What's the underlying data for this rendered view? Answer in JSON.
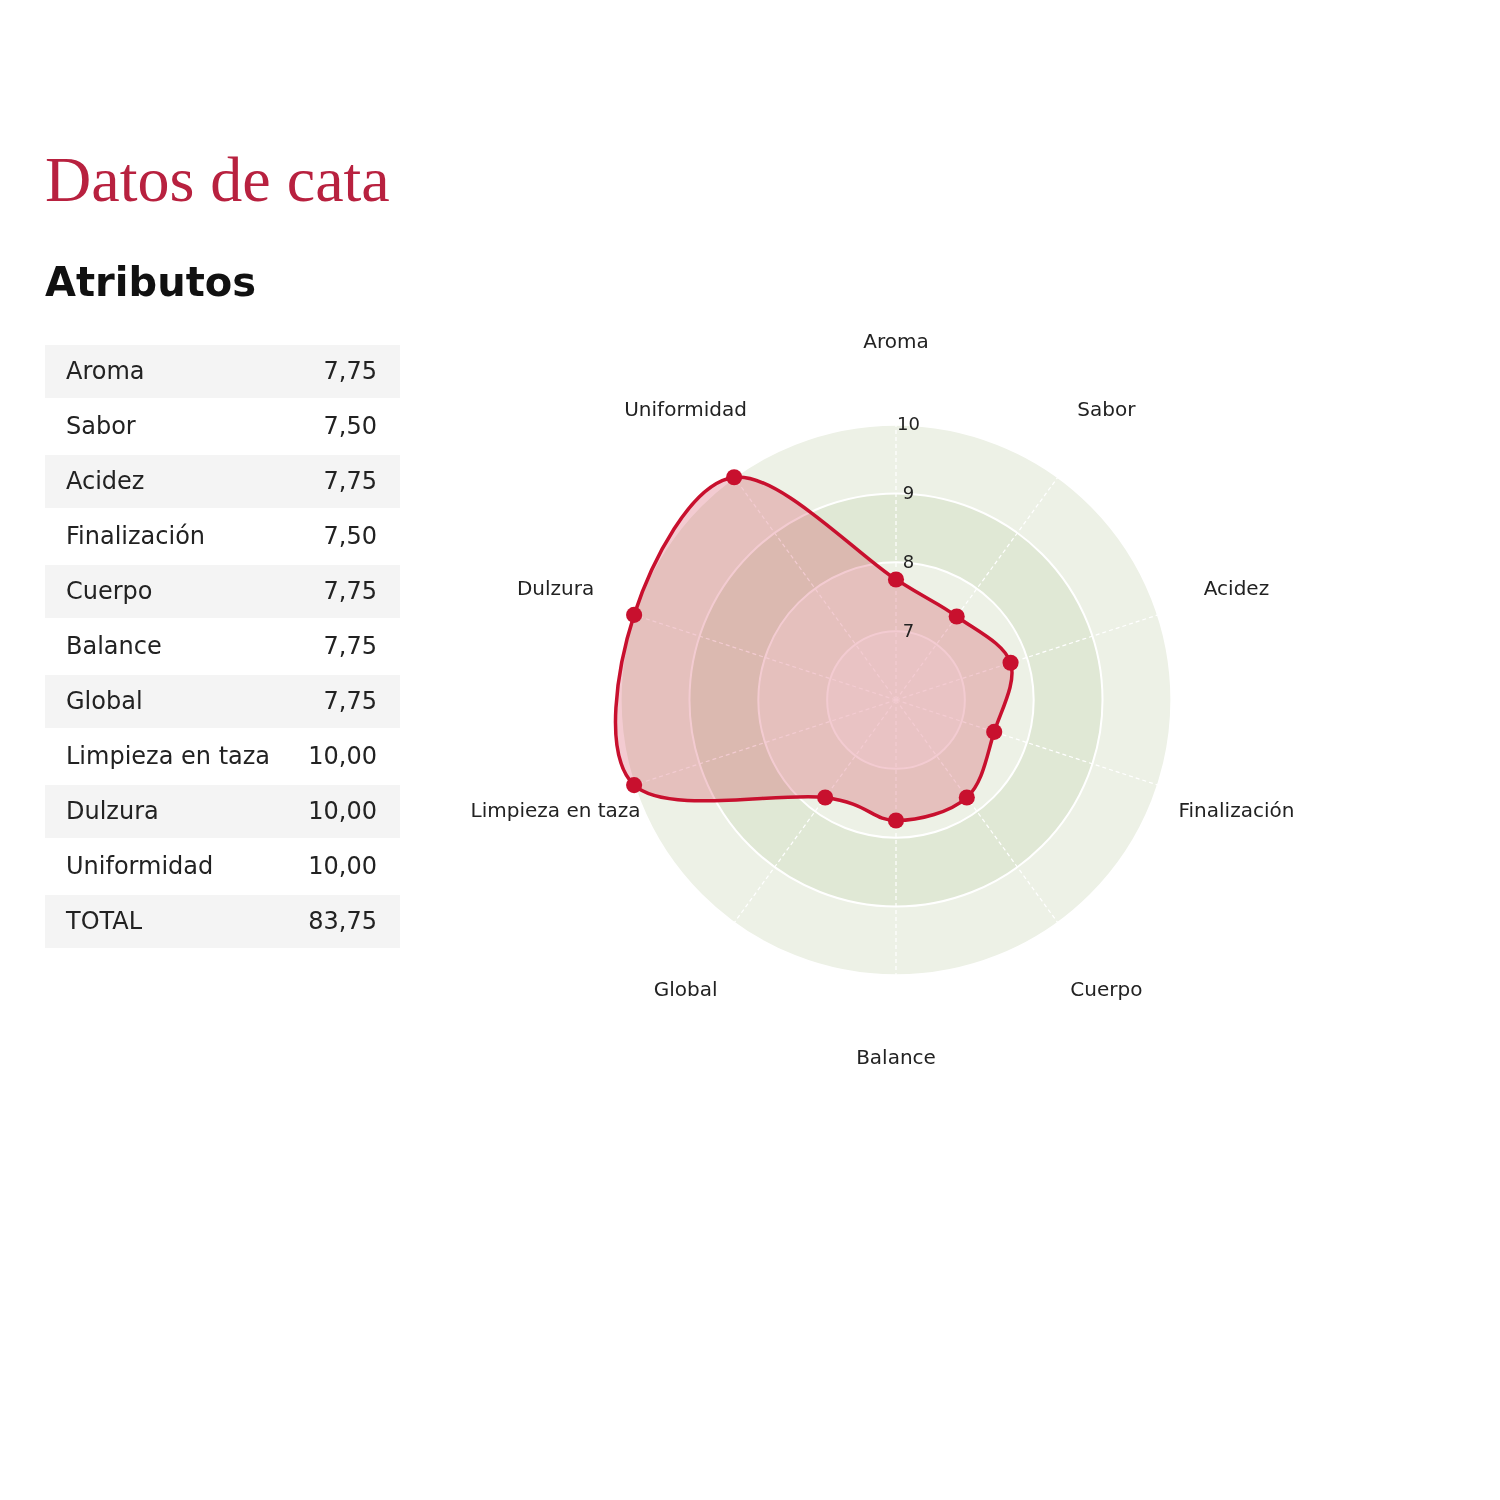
{
  "chart_data": [
    {
      "type": "other",
      "title": "Datos de cata",
      "subtitle": "Atributos",
      "annotations": [
        "Aroma",
        "7,75",
        "Sabor",
        "7,50",
        "Acidez",
        "7,75",
        "Finalización",
        "7,50",
        "Cuerpo",
        "7,75",
        "Balance",
        "7,75",
        "Global",
        "7,75",
        "Limpieza en taza",
        "10,00",
        "Dulzura",
        "10,00",
        "Uniformidad",
        "10,00",
        "TOTAL",
        "83,75"
      ]
    },
    {
      "type": "radar",
      "categories": [
        "Aroma",
        "Sabor",
        "Acidez",
        "Finalización",
        "Cuerpo",
        "Balance",
        "Global",
        "Limpieza en taza",
        "Dulzura",
        "Uniformidad"
      ],
      "series": [
        {
          "color": "#c8102e",
          "values": [
            7.75,
            7.5,
            7.75,
            7.5,
            7.75,
            7.75,
            7.75,
            10,
            10,
            10
          ]
        }
      ],
      "ylim": [
        6,
        10
      ],
      "yticks": [
        7,
        8,
        9,
        10
      ],
      "grid": true,
      "legend": false,
      "marker": "circle"
    }
  ]
}
